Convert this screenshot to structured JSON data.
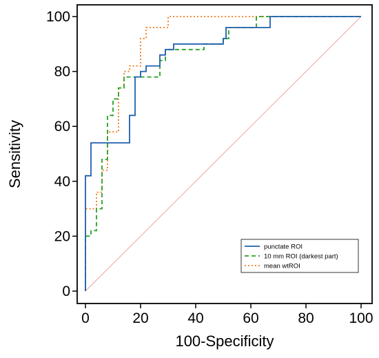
{
  "chart_data": {
    "type": "line",
    "title": "",
    "xlabel": "100-Specificity",
    "ylabel": "Sensitivity",
    "xlim": [
      0,
      100
    ],
    "ylim": [
      0,
      100
    ],
    "xticks": [
      0,
      20,
      40,
      60,
      80,
      100
    ],
    "yticks": [
      0,
      20,
      40,
      60,
      80,
      100
    ],
    "grid": false,
    "legend_position": "bottom-right",
    "diagonal": {
      "x": [
        0,
        100
      ],
      "y": [
        0,
        100
      ],
      "color": "#f4a0a0"
    },
    "series": [
      {
        "name": "punctate ROI",
        "color": "#1f5fae",
        "dash": "solid",
        "x": [
          0,
          0,
          0,
          2,
          2,
          16,
          16,
          18,
          18,
          20,
          20,
          22,
          22,
          27,
          27,
          29,
          29,
          32,
          32,
          50,
          50,
          51,
          51,
          67,
          67,
          100
        ],
        "y": [
          0,
          40,
          42,
          42,
          54,
          54,
          64,
          64,
          78,
          78,
          80,
          80,
          82,
          82,
          86,
          86,
          88,
          88,
          90,
          90,
          92,
          92,
          96,
          96,
          100,
          100
        ]
      },
      {
        "name": "10 mm ROI (darkest part)",
        "color": "#22a322",
        "dash": "6,4",
        "x": [
          0,
          0,
          2,
          2,
          4,
          4,
          6,
          6,
          8,
          8,
          10,
          10,
          12,
          12,
          14,
          14,
          18,
          18,
          27,
          27,
          29,
          29,
          43,
          43,
          50,
          50,
          52,
          52,
          62,
          62,
          100
        ],
        "y": [
          0,
          20,
          20,
          22,
          22,
          30,
          30,
          48,
          48,
          64,
          64,
          70,
          70,
          74,
          74,
          78,
          78,
          78,
          78,
          84,
          84,
          88,
          88,
          90,
          90,
          92,
          92,
          96,
          96,
          100,
          100
        ]
      },
      {
        "name": "mean wtROI",
        "color": "#f07a1a",
        "dash": "2,3",
        "x": [
          0,
          0,
          4,
          4,
          6,
          6,
          8,
          8,
          10,
          10,
          12,
          12,
          14,
          14,
          16,
          16,
          18,
          18,
          20,
          20,
          22,
          22,
          24,
          24,
          28,
          28,
          30,
          30,
          100
        ],
        "y": [
          0,
          30,
          30,
          36,
          36,
          44,
          44,
          58,
          58,
          58,
          58,
          74,
          74,
          80,
          80,
          82,
          82,
          82,
          82,
          92,
          92,
          96,
          96,
          96,
          96,
          96,
          96,
          100,
          100
        ]
      }
    ]
  }
}
